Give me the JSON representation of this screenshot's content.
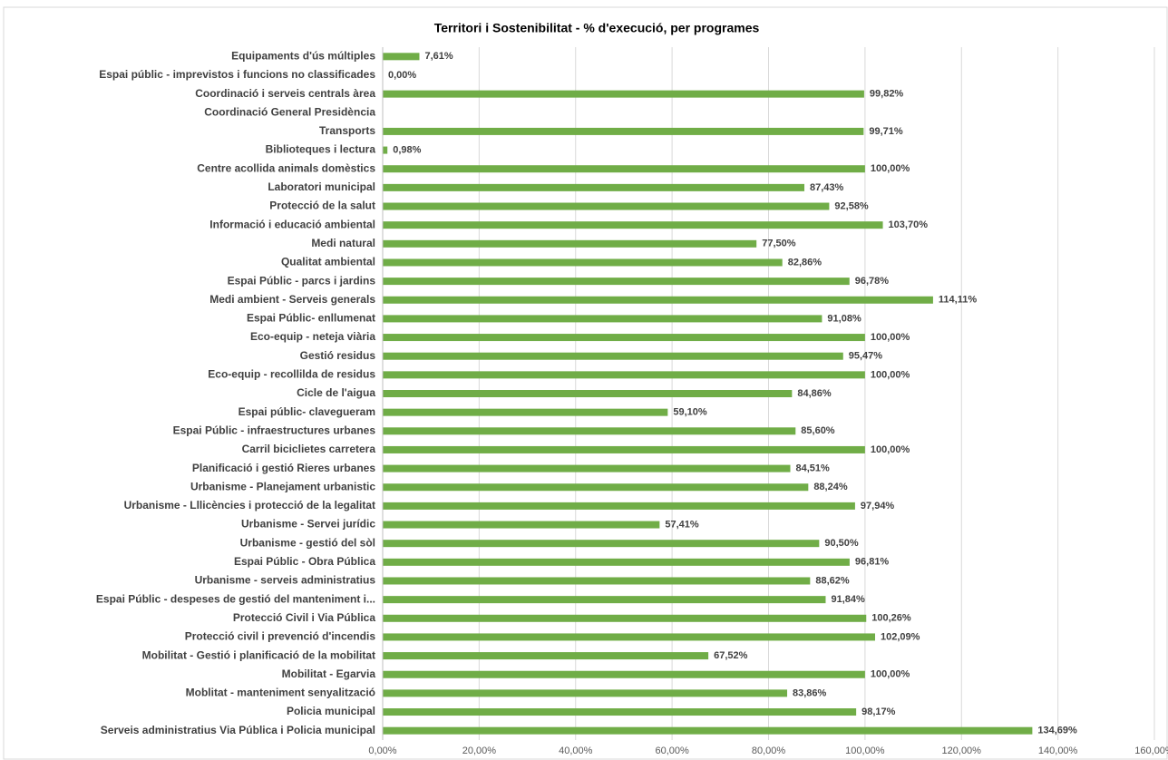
{
  "chart_data": {
    "type": "bar",
    "orientation": "horizontal",
    "title": "Territori i Sostenibilitat -  % d'execució, per programes",
    "categories": [
      "Equipaments d'ús múltiples",
      "Espai públic - imprevistos i funcions no classificades",
      "Coordinació i serveis centrals àrea",
      "Coordinació General Presidència",
      "Transports",
      "Biblioteques i lectura",
      "Centre acollida animals domèstics",
      "Laboratori municipal",
      "Protecció de la salut",
      "Informació i educació ambiental",
      "Medi natural",
      "Qualitat ambiental",
      "Espai Públic - parcs i jardins",
      "Medi ambient - Serveis generals",
      "Espai Públic- enllumenat",
      "Eco-equip - neteja viària",
      "Gestió residus",
      "Eco-equip - recollilda de residus",
      "Cicle de l'aigua",
      "Espai públic- clavegueram",
      "Espai Públic - infraestructures urbanes",
      "Carril biciclietes carretera",
      "Planificació i gestió Rieres urbanes",
      "Urbanisme - Planejament urbanistic",
      "Urbanisme - Lllicències i protecció de la legalitat",
      "Urbanisme - Servei jurídic",
      "Urbanisme - gestió del sòl",
      "Espai Públic - Obra Pública",
      "Urbanisme - serveis administratius",
      "Espai Públic - despeses de gestió del manteniment i...",
      "Protecció Civil i Via Pública",
      "Protecció civil i prevenció d'incendis",
      "Mobilitat - Gestió i planificació de la mobilitat",
      "Mobilitat - Egarvia",
      "Moblitat - manteniment senyalització",
      "Policia municipal",
      "Serveis administratius Via Pública i Policia municipal"
    ],
    "values": [
      7.61,
      0,
      99.82,
      null,
      99.71,
      0.98,
      100,
      87.43,
      92.58,
      103.7,
      77.5,
      82.86,
      96.78,
      114.11,
      91.08,
      100,
      95.47,
      100,
      84.86,
      59.1,
      85.6,
      100,
      84.51,
      88.24,
      97.94,
      57.41,
      90.5,
      96.81,
      88.62,
      91.84,
      100.26,
      102.09,
      67.52,
      100,
      83.86,
      98.17,
      134.69
    ],
    "value_labels": [
      "7,61%",
      "0,00%",
      "99,82%",
      null,
      "99,71%",
      "0,98%",
      "100,00%",
      "87,43%",
      "92,58%",
      "103,70%",
      "77,50%",
      "82,86%",
      "96,78%",
      "114,11%",
      "91,08%",
      "100,00%",
      "95,47%",
      "100,00%",
      "84,86%",
      "59,10%",
      "85,60%",
      "100,00%",
      "84,51%",
      "88,24%",
      "97,94%",
      "57,41%",
      "90,50%",
      "96,81%",
      "88,62%",
      "91,84%",
      "100,26%",
      "102,09%",
      "67,52%",
      "100,00%",
      "83,86%",
      "98,17%",
      "134,69%"
    ],
    "color": "#70ad47",
    "xlim": [
      0,
      160
    ],
    "xticks": [
      {
        "value": 0,
        "label": "0,00%"
      },
      {
        "value": 20,
        "label": "20,00%"
      },
      {
        "value": 40,
        "label": "40,00%"
      },
      {
        "value": 60,
        "label": "60,00%"
      },
      {
        "value": 80,
        "label": "80,00%"
      },
      {
        "value": 100,
        "label": "100,00%"
      },
      {
        "value": 120,
        "label": "120,00%"
      },
      {
        "value": 140,
        "label": "140,00%"
      },
      {
        "value": 160,
        "label": "160,00%"
      }
    ],
    "grid": true
  }
}
